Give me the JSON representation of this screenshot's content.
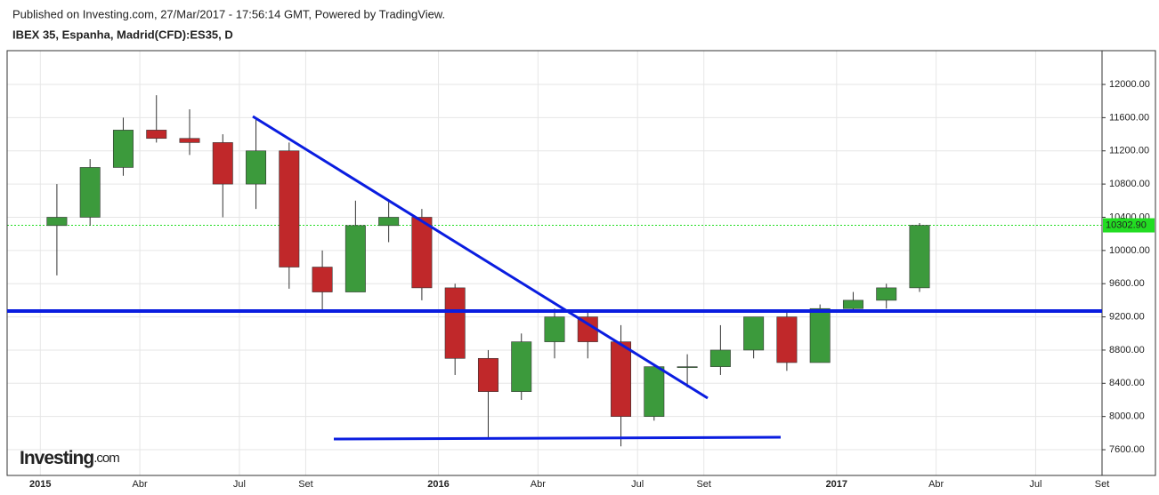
{
  "header": {
    "published": "Published on Investing.com, 27/Mar/2017 - 17:56:14 GMT, Powered by TradingView.",
    "symbol": "IBEX 35, Espanha, Madrid(CFD):ES35, D",
    "logo": "Investing",
    "logo_suffix": ".com"
  },
  "chart_data": {
    "type": "candlestick",
    "x": [
      "2015-01",
      "2015-02",
      "2015-03",
      "2015-04",
      "2015-05",
      "2015-06",
      "2015-07",
      "2015-08",
      "2015-09",
      "2015-10",
      "2015-11",
      "2015-12",
      "2016-01",
      "2016-02",
      "2016-03",
      "2016-04",
      "2016-05",
      "2016-06",
      "2016-07",
      "2016-08",
      "2016-09",
      "2016-10",
      "2016-11",
      "2016-12",
      "2017-01",
      "2017-02",
      "2017-03"
    ],
    "open": [
      10300,
      10400,
      11000,
      11450,
      11350,
      11300,
      10800,
      11200,
      9800,
      9500,
      10300,
      10400,
      9550,
      8700,
      8300,
      8900,
      9200,
      8900,
      8000,
      8600,
      8600,
      8800,
      9200,
      8650,
      9300,
      9400,
      9550
    ],
    "high": [
      10800,
      11100,
      11600,
      11870,
      11700,
      11400,
      11580,
      11300,
      10000,
      10600,
      10600,
      10500,
      9600,
      8800,
      9000,
      9300,
      9250,
      9100,
      8600,
      8750,
      9100,
      9200,
      9250,
      9350,
      9500,
      9600,
      10330
    ],
    "low": [
      9700,
      10300,
      10900,
      11300,
      11150,
      10400,
      10500,
      9540,
      9270,
      9500,
      10100,
      9400,
      8500,
      7750,
      8200,
      8700,
      8700,
      7640,
      7950,
      8350,
      8500,
      8700,
      8550,
      8650,
      9250,
      9300,
      9500
    ],
    "close": [
      10400,
      11000,
      11450,
      11350,
      11300,
      10800,
      11200,
      9800,
      9500,
      10300,
      10400,
      9550,
      8700,
      8300,
      8900,
      9200,
      8900,
      8000,
      8600,
      8600,
      8800,
      9200,
      8650,
      9300,
      9400,
      9550,
      10302.9
    ],
    "up_color": "#3c9a3c",
    "down_color": "#c0282a",
    "xlim": [
      "2014-12",
      "2017-09"
    ],
    "xticks": [
      {
        "value": "2015-01",
        "label": "2015"
      },
      {
        "value": "2015-04",
        "label": "Abr"
      },
      {
        "value": "2015-07",
        "label": "Jul"
      },
      {
        "value": "2015-09",
        "label": "Set"
      },
      {
        "value": "2016-01",
        "label": "2016"
      },
      {
        "value": "2016-04",
        "label": "Abr"
      },
      {
        "value": "2016-07",
        "label": "Jul"
      },
      {
        "value": "2016-09",
        "label": "Set"
      },
      {
        "value": "2017-01",
        "label": "2017"
      },
      {
        "value": "2017-04",
        "label": "Abr"
      },
      {
        "value": "2017-07",
        "label": "Jul"
      },
      {
        "value": "2017-09",
        "label": "Set"
      }
    ],
    "ylim": [
      7290,
      12407
    ],
    "yticks": [
      {
        "value": 7600,
        "label": "7600.00"
      },
      {
        "value": 8000,
        "label": "8000.00"
      },
      {
        "value": 8400,
        "label": "8400.00"
      },
      {
        "value": 8800,
        "label": "8800.00"
      },
      {
        "value": 9200,
        "label": "9200.00"
      },
      {
        "value": 9600,
        "label": "9600.00"
      },
      {
        "value": 10000,
        "label": "10000.00"
      },
      {
        "value": 10400,
        "label": "10400.00"
      },
      {
        "value": 10800,
        "label": "10800.00"
      },
      {
        "value": 11200,
        "label": "11200.00"
      },
      {
        "value": 11600,
        "label": "11600.00"
      },
      {
        "value": 12000,
        "label": "12000.00"
      }
    ],
    "last_price": {
      "value": 10302.9,
      "label": "10302.90",
      "color": "#22dd22"
    },
    "grid": true
  }
}
